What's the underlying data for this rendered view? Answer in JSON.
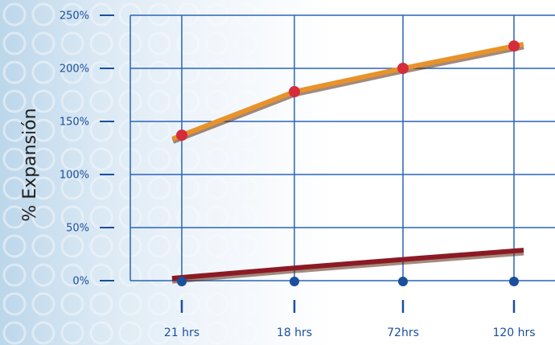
{
  "chart_data": {
    "type": "line",
    "title": "",
    "xlabel": "",
    "ylabel": "% Expansión",
    "categories": [
      "21 hrs",
      "18 hrs",
      "72hrs",
      "120 hrs"
    ],
    "y_ticks": [
      "250%",
      "200%",
      "150%",
      "100%",
      "50%",
      "0%"
    ],
    "ylim": [
      0,
      250
    ],
    "grid": true,
    "legend": "none",
    "series": [
      {
        "values": [
          137,
          178,
          200,
          221
        ],
        "color": "#e8922a",
        "marker": "circle",
        "marker_color": "#d42c3a"
      },
      {
        "values": [
          3,
          12,
          20,
          28
        ],
        "color": "#8c1a24",
        "marker": "none"
      }
    ],
    "colors": {
      "axis": "#1a4f9c",
      "grid": "#2a64b8",
      "axis_dot": "#1a4f9c"
    }
  }
}
